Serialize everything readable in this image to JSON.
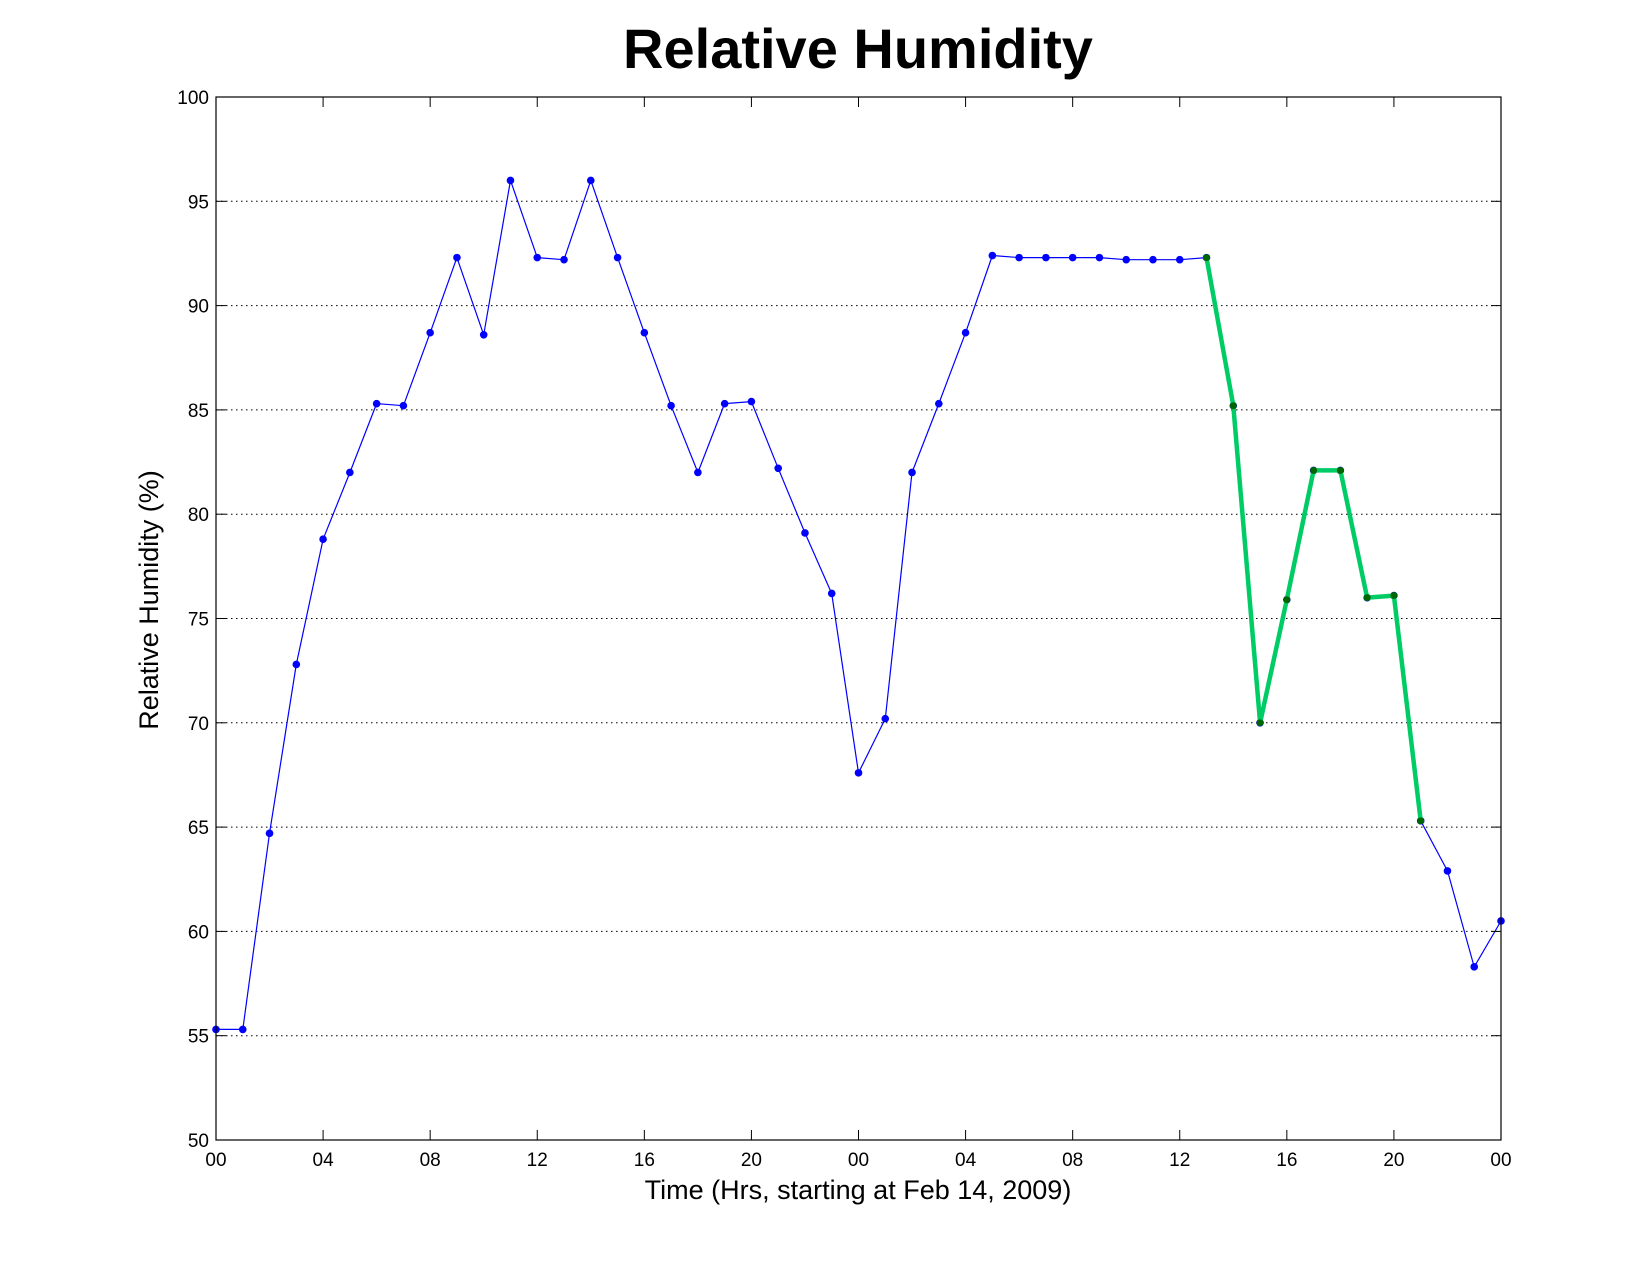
{
  "chart_data": {
    "type": "line",
    "title": "Relative Humidity",
    "xlabel": "Time (Hrs, starting at Feb 14, 2009)",
    "ylabel": "Relative Humidity (%)",
    "xlim": [
      0,
      48
    ],
    "ylim": [
      50,
      100
    ],
    "yticks": [
      50,
      55,
      60,
      65,
      70,
      75,
      80,
      85,
      90,
      95,
      100
    ],
    "xticks": [
      {
        "x": 0,
        "label": "00"
      },
      {
        "x": 4,
        "label": "04"
      },
      {
        "x": 8,
        "label": "08"
      },
      {
        "x": 12,
        "label": "12"
      },
      {
        "x": 16,
        "label": "16"
      },
      {
        "x": 20,
        "label": "20"
      },
      {
        "x": 24,
        "label": "00"
      },
      {
        "x": 28,
        "label": "04"
      },
      {
        "x": 32,
        "label": "08"
      },
      {
        "x": 36,
        "label": "12"
      },
      {
        "x": 40,
        "label": "16"
      },
      {
        "x": 44,
        "label": "20"
      },
      {
        "x": 48,
        "label": "00"
      }
    ],
    "grid": "horizontal dotted",
    "series": [
      {
        "color": "#0000ff",
        "style": "thin line with dot markers",
        "x": [
          0,
          1,
          2,
          3,
          4,
          5,
          6,
          7,
          8,
          9,
          10,
          11,
          12,
          13,
          14,
          15,
          16,
          17,
          18,
          19,
          20,
          21,
          22,
          23,
          24,
          25,
          26,
          27,
          28,
          29,
          30,
          31,
          32,
          33,
          34,
          35,
          36,
          37,
          38,
          39,
          40,
          41,
          42,
          43,
          44,
          45,
          46,
          47,
          48
        ],
        "values": [
          55.3,
          55.3,
          64.7,
          72.8,
          78.8,
          82.0,
          85.3,
          85.2,
          88.7,
          92.3,
          88.6,
          96.0,
          92.3,
          92.2,
          96.0,
          92.3,
          88.7,
          85.2,
          82.0,
          85.3,
          85.4,
          82.2,
          79.1,
          76.2,
          67.6,
          70.2,
          82.0,
          85.3,
          88.7,
          92.4,
          92.3,
          92.3,
          92.3,
          92.3,
          92.2,
          92.2,
          92.2,
          92.3,
          85.2,
          70.0,
          75.9,
          82.1,
          82.1,
          76.0,
          76.1,
          65.3,
          62.9,
          58.3,
          60.5
        ]
      },
      {
        "color": "#00cc66",
        "marker_color": "#006600",
        "style": "thick line with dot markers",
        "x": [
          37,
          38,
          39,
          40,
          41,
          42,
          43,
          44,
          45
        ],
        "values": [
          92.3,
          85.2,
          70.0,
          75.9,
          82.1,
          82.1,
          76.0,
          76.1,
          65.3
        ]
      }
    ]
  }
}
